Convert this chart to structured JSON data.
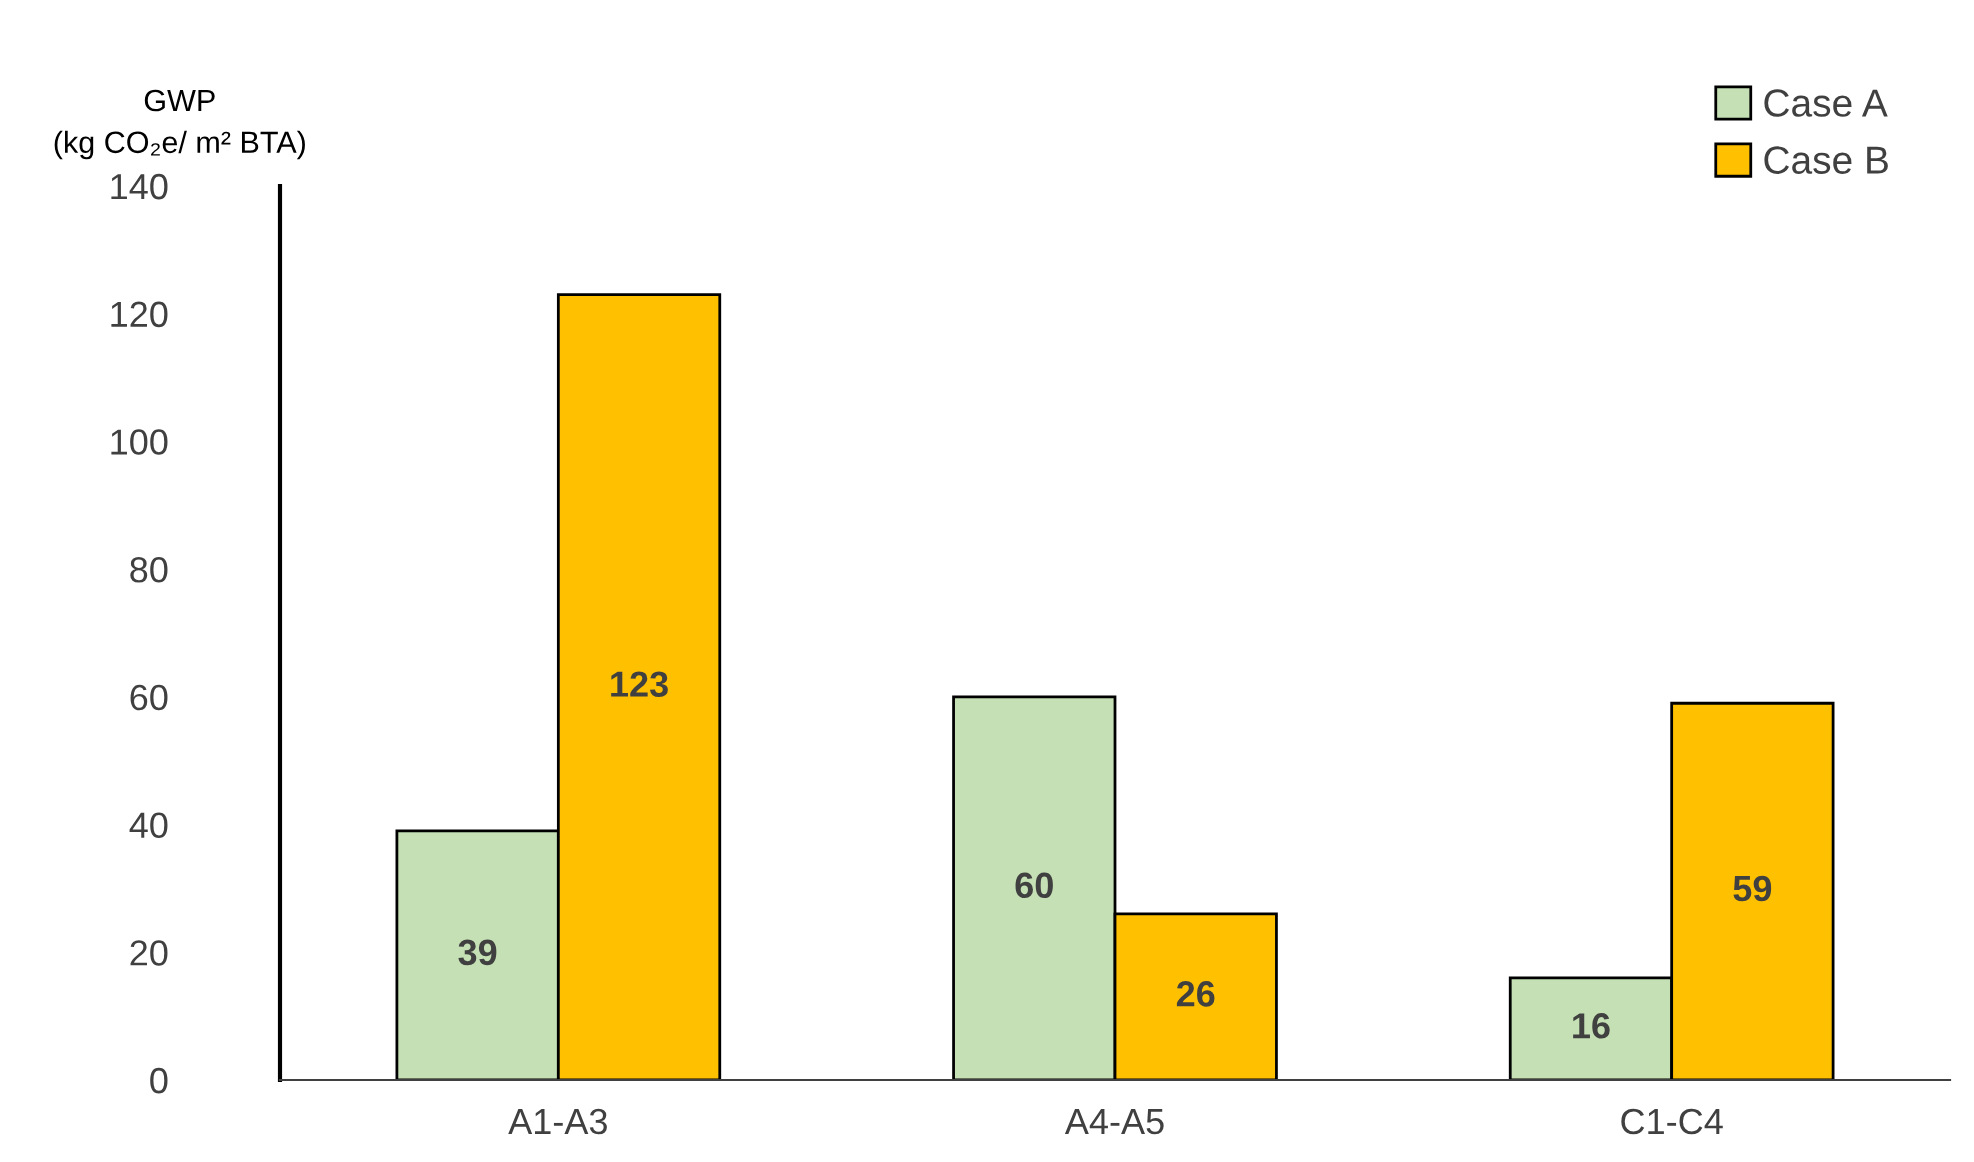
{
  "chart_data": {
    "type": "bar",
    "ylabel": "GWP\n(kg CO₂e/ m² BTA)",
    "categories": [
      "A1-A3",
      "A4-A5",
      "C1-C4"
    ],
    "series": [
      {
        "name": "Case A",
        "color": "#c5e0b4",
        "values": [
          39,
          60,
          16
        ]
      },
      {
        "name": "Case B",
        "color": "#ffc000",
        "values": [
          123,
          26,
          59
        ]
      }
    ],
    "ylim": [
      0,
      140
    ],
    "yticks": [
      0,
      20,
      40,
      60,
      80,
      100,
      120,
      140
    ],
    "data_labels": true,
    "legend": "top right",
    "grid": false
  }
}
